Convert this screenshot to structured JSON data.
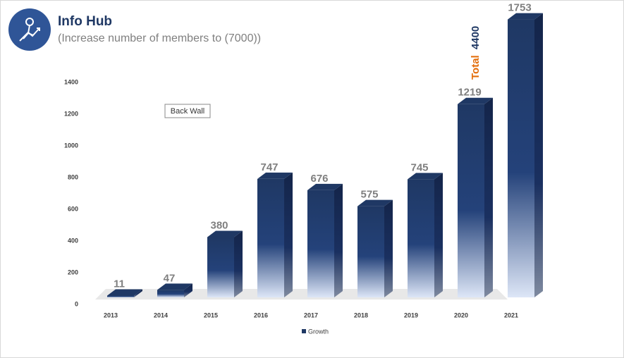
{
  "chart_data": {
    "type": "bar3d",
    "title": "Info Hub",
    "subtitle": "(Increase number of members to (7000))",
    "categories": [
      "2013",
      "2014",
      "2015",
      "2016",
      "2017",
      "2018",
      "2019",
      "2020",
      "2021"
    ],
    "series": [
      {
        "name": "Growth",
        "color": "#1f3864",
        "values": [
          11,
          47,
          380,
          747,
          676,
          575,
          745,
          1219,
          1753
        ]
      }
    ],
    "ylim": [
      0,
      1400
    ],
    "yticks": [
      0,
      200,
      400,
      600,
      800,
      1000,
      1200,
      1400
    ],
    "grid": false,
    "legend": "bottom",
    "annotations": [
      {
        "text": "Total",
        "color": "#e36c09"
      },
      {
        "text": "4400",
        "color": "#1f3864"
      },
      {
        "text": "Back Wall",
        "color": "#333333"
      }
    ]
  }
}
